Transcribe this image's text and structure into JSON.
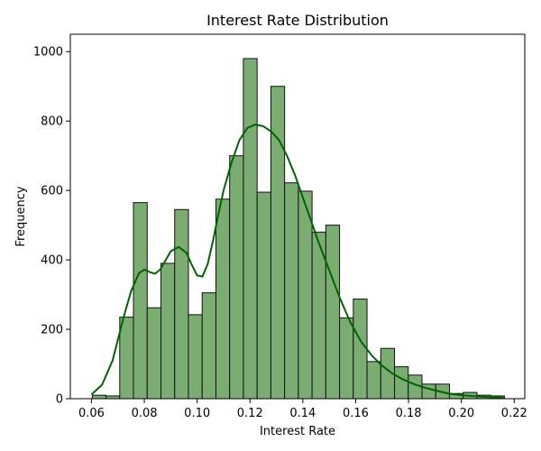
{
  "chart_data": {
    "type": "bar",
    "subtype": "histogram_with_kde",
    "title": "Interest Rate Distribution",
    "xlabel": "Interest Rate",
    "ylabel": "Frequency",
    "xlim": [
      0.052,
      0.224
    ],
    "ylim": [
      0,
      1050
    ],
    "xticks": [
      "0.06",
      "0.08",
      "0.10",
      "0.12",
      "0.14",
      "0.16",
      "0.18",
      "0.20",
      "0.22"
    ],
    "yticks": [
      "0",
      "200",
      "400",
      "600",
      "800",
      "1000"
    ],
    "bin_edges": [
      0.0603,
      0.0655,
      0.0707,
      0.0759,
      0.0811,
      0.0863,
      0.0915,
      0.0967,
      0.1019,
      0.1071,
      0.1123,
      0.1175,
      0.1227,
      0.1279,
      0.1331,
      0.1383,
      0.1435,
      0.1487,
      0.1539,
      0.1591,
      0.1643,
      0.1695,
      0.1747,
      0.1799,
      0.1851,
      0.1903,
      0.1955,
      0.2007,
      0.2059,
      0.2111,
      0.2163
    ],
    "values": [
      10,
      8,
      235,
      565,
      262,
      390,
      545,
      242,
      305,
      575,
      700,
      980,
      595,
      900,
      622,
      598,
      480,
      500,
      233,
      287,
      107,
      145,
      92,
      68,
      42,
      42,
      15,
      18,
      10,
      8
    ],
    "kde": {
      "x": [
        0.06,
        0.064,
        0.068,
        0.072,
        0.075,
        0.078,
        0.08,
        0.082,
        0.084,
        0.086,
        0.088,
        0.09,
        0.093,
        0.096,
        0.098,
        0.1,
        0.102,
        0.104,
        0.106,
        0.108,
        0.11,
        0.113,
        0.116,
        0.119,
        0.122,
        0.125,
        0.128,
        0.131,
        0.134,
        0.137,
        0.14,
        0.143,
        0.146,
        0.15,
        0.154,
        0.158,
        0.162,
        0.166,
        0.17,
        0.174,
        0.178,
        0.182,
        0.186,
        0.19,
        0.195,
        0.2,
        0.205,
        0.21,
        0.216
      ],
      "y": [
        12,
        40,
        110,
        230,
        310,
        362,
        372,
        365,
        360,
        372,
        398,
        425,
        437,
        420,
        385,
        355,
        352,
        388,
        455,
        530,
        600,
        680,
        745,
        780,
        790,
        785,
        770,
        745,
        700,
        645,
        580,
        515,
        450,
        370,
        290,
        220,
        165,
        125,
        95,
        72,
        55,
        42,
        32,
        24,
        15,
        10,
        7,
        5,
        3
      ]
    },
    "colors": {
      "bar_fill": "#7bac72",
      "bar_stroke": "#111111",
      "kde_line": "#006400"
    },
    "grid": false,
    "legend": "none"
  }
}
